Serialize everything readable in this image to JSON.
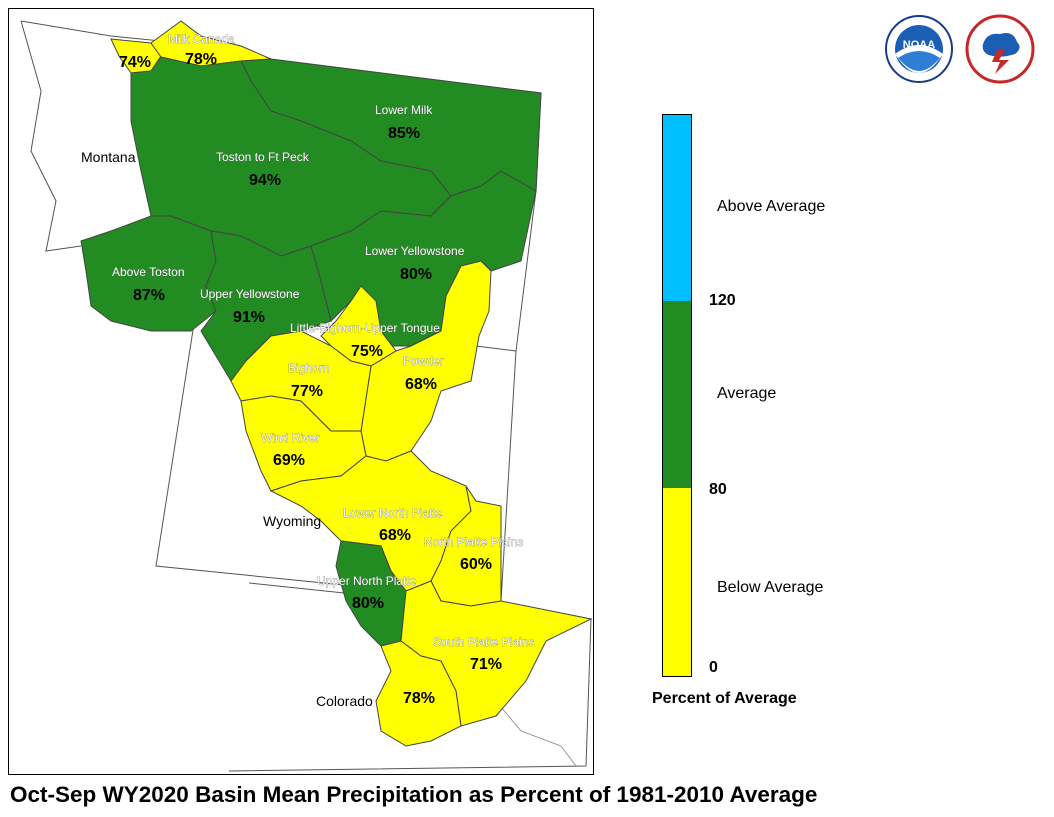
{
  "title": "Oct-Sep WY2020 Basin Mean Precipitation as Percent of 1981-2010 Average",
  "states": [
    {
      "name": "Montana"
    },
    {
      "name": "Wyoming"
    },
    {
      "name": "Colorado"
    }
  ],
  "basins": [
    {
      "name": "",
      "value": "74%",
      "category": "below"
    },
    {
      "name": "Milk Canada",
      "value": "78%",
      "category": "below"
    },
    {
      "name": "Lower Milk",
      "value": "85%",
      "category": "average"
    },
    {
      "name": "Toston to Ft Peck",
      "value": "94%",
      "category": "average"
    },
    {
      "name": "Above Toston",
      "value": "87%",
      "category": "average"
    },
    {
      "name": "Upper Yellowstone",
      "value": "91%",
      "category": "average"
    },
    {
      "name": "Lower Yellowstone",
      "value": "80%",
      "category": "average"
    },
    {
      "name": "Little-Bighorn-Upper Tongue",
      "value": "75%",
      "category": "below"
    },
    {
      "name": "Bighorn",
      "value": "77%",
      "category": "below"
    },
    {
      "name": "Powder",
      "value": "68%",
      "category": "below"
    },
    {
      "name": "Wind River",
      "value": "69%",
      "category": "below"
    },
    {
      "name": "Lower North Platte",
      "value": "68%",
      "category": "below"
    },
    {
      "name": "North Platte Plains",
      "value": "60%",
      "category": "below"
    },
    {
      "name": "Upper North Platte",
      "value": "80%",
      "category": "average"
    },
    {
      "name": "South Platte Plains",
      "value": "71%",
      "category": "below"
    },
    {
      "name": "",
      "value": "78%",
      "category": "below"
    }
  ],
  "legend": {
    "caption": "Percent of Average",
    "categories": [
      {
        "label": "Above Average",
        "color": "#00bfff"
      },
      {
        "label": "Average",
        "color": "#228b22"
      },
      {
        "label": "Below Average",
        "color": "#ffff00"
      }
    ],
    "ticks": [
      "120",
      "80",
      "0"
    ]
  },
  "logos": [
    {
      "text": "NOAA",
      "icon": "noaa-logo"
    },
    {
      "text": "",
      "icon": "nws-logo"
    }
  ],
  "colors": {
    "below": "#ffff00",
    "average": "#228b22",
    "above": "#00bfff",
    "stroke": "#444444"
  }
}
